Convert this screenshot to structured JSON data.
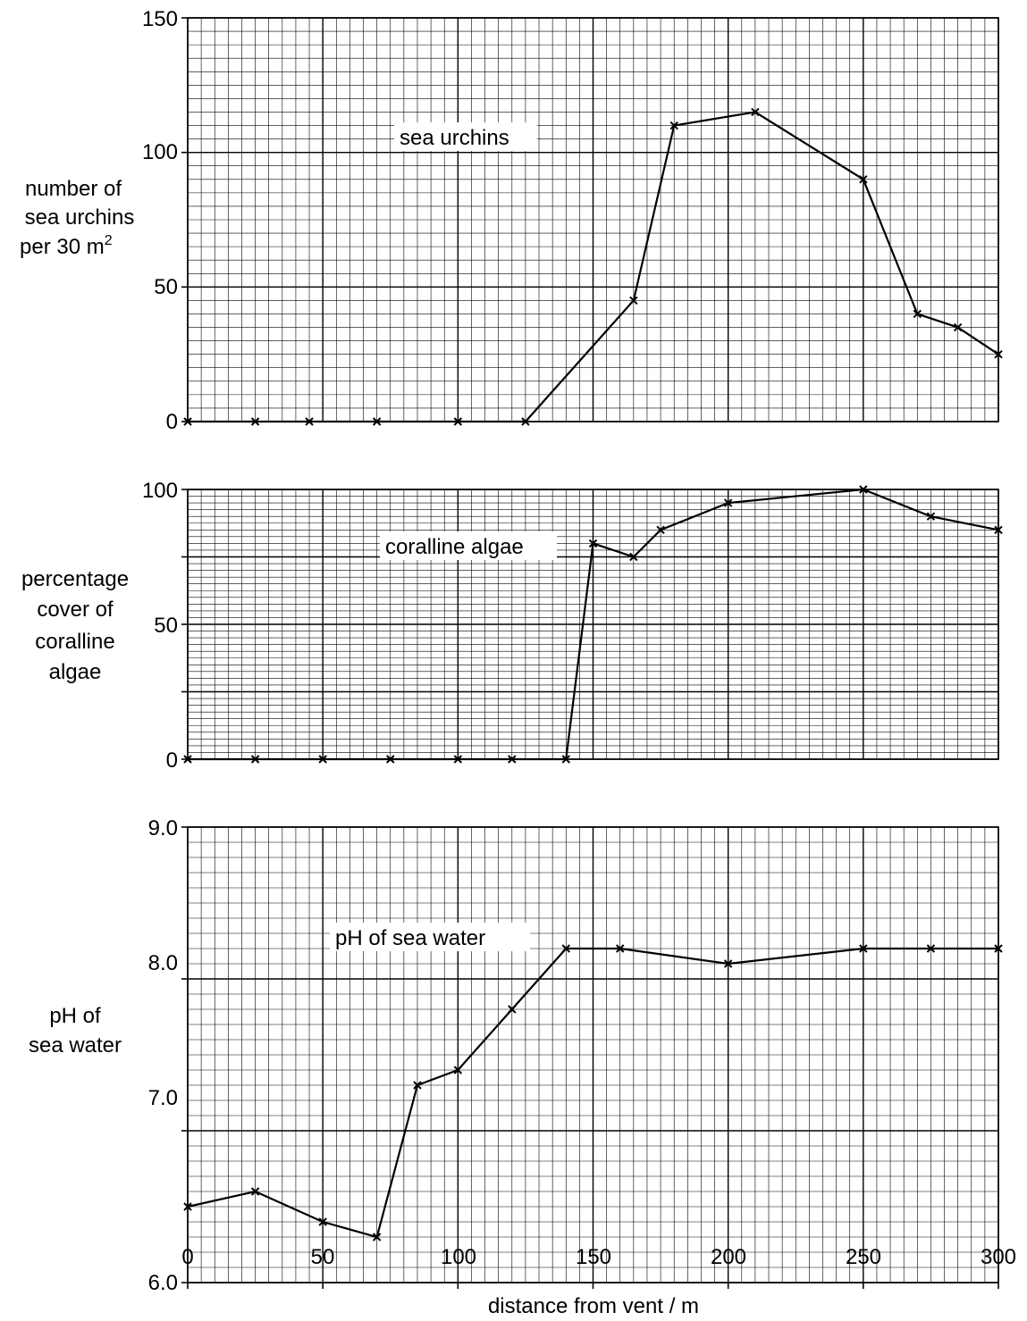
{
  "chart_data": [
    {
      "type": "line",
      "title": "",
      "xlabel": "",
      "ylabel_lines": [
        "number of",
        "sea urchins",
        "per 30 m",
        "2"
      ],
      "series_label": "sea urchins",
      "xlim": [
        0,
        300
      ],
      "ylim": [
        0,
        150
      ],
      "yticks": [
        "0",
        "50",
        "100",
        "150"
      ],
      "grid": true,
      "series": [
        {
          "x": [
            0,
            25,
            45,
            70,
            100,
            125,
            165,
            180,
            210,
            250,
            270,
            285,
            300
          ],
          "y": [
            0,
            0,
            0,
            0,
            0,
            0,
            45,
            110,
            115,
            90,
            40,
            35,
            25
          ]
        }
      ]
    },
    {
      "type": "line",
      "title": "",
      "xlabel": "",
      "ylabel_lines": [
        "percentage",
        "cover of",
        "coralline",
        "algae"
      ],
      "series_label": "coralline algae",
      "xlim": [
        0,
        300
      ],
      "ylim": [
        0,
        100
      ],
      "yticks": [
        "0",
        "50",
        "100"
      ],
      "grid": true,
      "series": [
        {
          "x": [
            0,
            25,
            50,
            75,
            100,
            120,
            140,
            150,
            165,
            175,
            200,
            250,
            275,
            300
          ],
          "y": [
            0,
            0,
            0,
            0,
            0,
            0,
            0,
            80,
            75,
            85,
            95,
            100,
            90,
            85
          ]
        }
      ]
    },
    {
      "type": "line",
      "title": "",
      "xlabel": "distance from vent / m",
      "ylabel_lines": [
        "pH of",
        "sea water"
      ],
      "series_label": "pH of sea water",
      "xlim": [
        0,
        300
      ],
      "ylim": [
        6.0,
        9.0
      ],
      "yticks": [
        "6.0",
        "7.0",
        "8.0",
        "9.0"
      ],
      "xticks": [
        "0",
        "50",
        "100",
        "150",
        "200",
        "250",
        "300"
      ],
      "grid": true,
      "series": [
        {
          "x": [
            0,
            25,
            50,
            70,
            85,
            100,
            120,
            140,
            160,
            200,
            250,
            275,
            300
          ],
          "y": [
            6.5,
            6.6,
            6.4,
            6.3,
            7.3,
            7.4,
            7.8,
            8.2,
            8.2,
            8.1,
            8.2,
            8.2,
            8.2
          ]
        }
      ]
    }
  ]
}
